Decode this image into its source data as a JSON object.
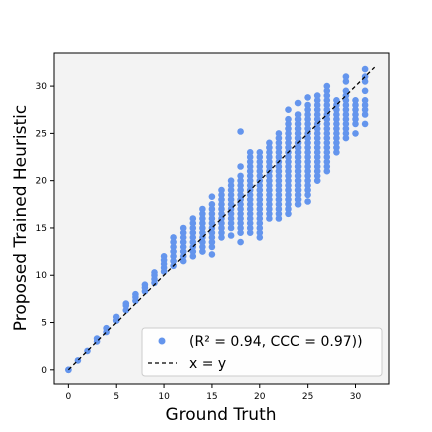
{
  "chart_data": {
    "type": "scatter",
    "title": "",
    "xlabel": "Ground Truth",
    "ylabel": "Proposed Trained Heuristic",
    "xlim": [
      -1.5,
      33.5
    ],
    "ylim": [
      -1.5,
      33.5
    ],
    "xticks": [
      0,
      5,
      10,
      15,
      20,
      25,
      30
    ],
    "yticks": [
      0,
      5,
      10,
      15,
      20,
      25,
      30
    ],
    "grid": false,
    "background": "#f3f3f3",
    "legend_position": "lower-right",
    "series": [
      {
        "name": "(R² = 0.94, CCC = 0.97))",
        "kind": "scatter",
        "color": "#6495ed",
        "columns": [
          {
            "x": 0,
            "y": [
              0,
              0
            ]
          },
          {
            "x": 1,
            "y": [
              1
            ]
          },
          {
            "x": 2,
            "y": [
              2
            ]
          },
          {
            "x": 3,
            "y": [
              3,
              3.3
            ]
          },
          {
            "x": 4,
            "y": [
              4,
              4.4
            ]
          },
          {
            "x": 5,
            "y": [
              5.2,
              5.6
            ]
          },
          {
            "x": 6,
            "y": [
              6.3,
              6.8,
              7
            ]
          },
          {
            "x": 7,
            "y": [
              7.3,
              7.7,
              8
            ]
          },
          {
            "x": 8,
            "y": [
              8.3,
              8.7,
              9
            ]
          },
          {
            "x": 9,
            "y": [
              9.2,
              9.6,
              10,
              10.3
            ]
          },
          {
            "x": 10,
            "y": [
              10.4,
              10.8,
              11.2,
              11.6,
              12
            ]
          },
          {
            "x": 11,
            "y": [
              11,
              11.5,
              12,
              12.5,
              13,
              13.5,
              14
            ]
          },
          {
            "x": 12,
            "y": [
              11.5,
              12,
              12.5,
              13,
              13.5,
              14,
              14.5,
              15
            ]
          },
          {
            "x": 13,
            "y": [
              12,
              12.5,
              13,
              13.5,
              14,
              14.5,
              15,
              15.5,
              16
            ]
          },
          {
            "x": 14,
            "y": [
              12.5,
              13,
              13.5,
              14,
              14.5,
              15,
              15.5,
              16,
              16.5,
              17
            ]
          },
          {
            "x": 15,
            "y": [
              12.2,
              13,
              13.5,
              14,
              14.5,
              15,
              15.5,
              16,
              16.5,
              17,
              17.5,
              18.3
            ]
          },
          {
            "x": 16,
            "y": [
              14,
              14.5,
              15,
              15.5,
              16,
              16.5,
              17,
              17.5,
              18,
              18.5,
              19
            ]
          },
          {
            "x": 17,
            "y": [
              14.2,
              15,
              15.5,
              16,
              16.5,
              17,
              17.5,
              18,
              18.5,
              19,
              19.5,
              20
            ]
          },
          {
            "x": 18,
            "y": [
              13.5,
              14.5,
              15,
              15.5,
              16,
              16.5,
              17,
              17.5,
              18,
              18.5,
              19,
              19.5,
              20,
              20.5,
              21.5,
              25.2
            ]
          },
          {
            "x": 19,
            "y": [
              14.5,
              15,
              15.5,
              16,
              16.5,
              17,
              17.5,
              18,
              18.5,
              19,
              19.5,
              20,
              20.5,
              21,
              21.5,
              22,
              22.5,
              23
            ]
          },
          {
            "x": 20,
            "y": [
              14,
              14.5,
              15,
              15.5,
              16,
              16.5,
              17,
              17.5,
              18,
              18.5,
              19,
              19.5,
              20,
              20.5,
              21,
              21.5,
              22,
              22.5,
              23
            ]
          },
          {
            "x": 21,
            "y": [
              16,
              16.5,
              17,
              17.5,
              18,
              18.5,
              19,
              19.5,
              20,
              20.5,
              21,
              21.5,
              22,
              22.5,
              23,
              23.5,
              24
            ]
          },
          {
            "x": 22,
            "y": [
              16,
              16.5,
              17,
              17.5,
              18,
              18.5,
              19,
              19.5,
              20,
              20.5,
              21,
              21.5,
              22,
              22.5,
              23,
              23.5,
              24,
              24.5,
              25
            ]
          },
          {
            "x": 23,
            "y": [
              16.5,
              17,
              17.5,
              18,
              18.5,
              19,
              19.5,
              20,
              20.5,
              21,
              21.5,
              22,
              22.5,
              23,
              23.5,
              24,
              24.5,
              25,
              25.5,
              26,
              26.5,
              27.5
            ]
          },
          {
            "x": 24,
            "y": [
              17.5,
              18,
              18.5,
              19,
              19.5,
              20,
              20.5,
              21,
              21.5,
              22,
              22.5,
              23,
              23.5,
              24,
              24.5,
              25,
              25.5,
              26,
              26.5,
              27,
              28.2
            ]
          },
          {
            "x": 25,
            "y": [
              17.8,
              18.5,
              19,
              19.5,
              20,
              20.5,
              21,
              21.5,
              22,
              22.5,
              23,
              23.5,
              24,
              24.5,
              25,
              25.5,
              26,
              26.5,
              27,
              27.5,
              28,
              28.8
            ]
          },
          {
            "x": 26,
            "y": [
              20,
              20.5,
              21,
              21.5,
              22,
              22.5,
              23,
              23.5,
              24,
              24.5,
              25,
              25.5,
              26,
              26.5,
              27,
              27.5,
              28,
              28.5,
              29
            ]
          },
          {
            "x": 27,
            "y": [
              21,
              21.5,
              22,
              22.5,
              23,
              23.5,
              24,
              24.5,
              25,
              25.5,
              26,
              26.5,
              27,
              27.5,
              28,
              28.5,
              29,
              29.5,
              30
            ]
          },
          {
            "x": 28,
            "y": [
              23,
              23.5,
              24,
              24.5,
              25,
              25.5,
              26,
              26.5,
              27,
              27.5,
              28,
              28.5
            ]
          },
          {
            "x": 29,
            "y": [
              24.5,
              25,
              25.5,
              26,
              26.5,
              27,
              27.5,
              28,
              28.5,
              29,
              29.5,
              30.5,
              31
            ]
          },
          {
            "x": 30,
            "y": [
              25,
              26,
              26.5,
              27,
              27.5,
              28,
              28.5
            ]
          },
          {
            "x": 31,
            "y": [
              26,
              27,
              27.5,
              28,
              28.5,
              29.5,
              30.5,
              31,
              31.8
            ]
          }
        ]
      },
      {
        "name": "x = y",
        "kind": "line",
        "style": "dashed",
        "color": "#000000",
        "x": [
          0,
          32
        ],
        "y": [
          0,
          32
        ]
      }
    ]
  }
}
